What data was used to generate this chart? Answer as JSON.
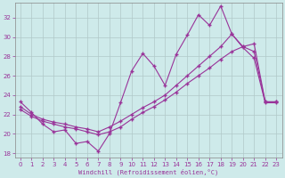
{
  "xlabel": "Windchill (Refroidissement éolien,°C)",
  "background_color": "#ceeaea",
  "line_color": "#993399",
  "grid_color": "#b0c8c8",
  "xlim": [
    -0.5,
    23.5
  ],
  "ylim": [
    17.5,
    33.5
  ],
  "yticks": [
    18,
    20,
    22,
    24,
    26,
    28,
    30,
    32
  ],
  "xticks": [
    0,
    1,
    2,
    3,
    4,
    5,
    6,
    7,
    8,
    9,
    10,
    11,
    12,
    13,
    14,
    15,
    16,
    17,
    18,
    19,
    20,
    21,
    22,
    23
  ],
  "line1_x": [
    0,
    1,
    2,
    3,
    4,
    5,
    6,
    7,
    8,
    9,
    10,
    11,
    12,
    13,
    14,
    15,
    16,
    17,
    18,
    19,
    20,
    21,
    22,
    23
  ],
  "line1_y": [
    23.3,
    22.2,
    21.0,
    20.2,
    20.4,
    19.0,
    19.2,
    18.2,
    20.0,
    23.2,
    26.5,
    28.3,
    27.0,
    25.0,
    28.2,
    30.2,
    32.3,
    31.2,
    33.2,
    30.3,
    28.9,
    27.8,
    23.2,
    23.2
  ],
  "line2_x": [
    0,
    1,
    2,
    3,
    4,
    5,
    6,
    7,
    8,
    9,
    10,
    11,
    12,
    13,
    14,
    15,
    16,
    17,
    18,
    19,
    20,
    21,
    22,
    23
  ],
  "line2_y": [
    22.8,
    22.0,
    21.5,
    21.2,
    21.0,
    20.7,
    20.5,
    20.2,
    20.7,
    21.3,
    22.0,
    22.7,
    23.3,
    24.0,
    25.0,
    26.0,
    27.0,
    28.0,
    29.0,
    30.3,
    29.0,
    28.5,
    23.3,
    23.3
  ],
  "line3_x": [
    0,
    1,
    2,
    3,
    4,
    5,
    6,
    7,
    8,
    9,
    10,
    11,
    12,
    13,
    14,
    15,
    16,
    17,
    18,
    19,
    20,
    21,
    22,
    23
  ],
  "line3_y": [
    22.5,
    21.8,
    21.3,
    21.0,
    20.7,
    20.5,
    20.2,
    19.9,
    20.2,
    20.7,
    21.5,
    22.2,
    22.8,
    23.5,
    24.3,
    25.2,
    26.0,
    26.8,
    27.7,
    28.5,
    29.0,
    29.3,
    23.3,
    23.3
  ]
}
